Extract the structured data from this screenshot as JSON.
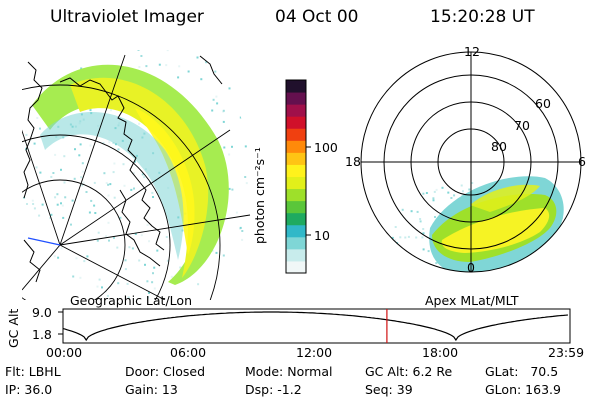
{
  "header": {
    "instrument": "Ultraviolet Imager",
    "date": "04 Oct 00",
    "time": "15:20:28 UT"
  },
  "colorbar": {
    "label": "photon cm⁻²s⁻¹",
    "ticks": [
      {
        "label": "100",
        "value": 100
      },
      {
        "label": "10",
        "value": 10
      }
    ],
    "colors": [
      "#f0f7f7",
      "#c8ecec",
      "#7fd6d6",
      "#31b8c8",
      "#1faa60",
      "#5ac63a",
      "#9ee02a",
      "#e2f01a",
      "#fff21c",
      "#ffc414",
      "#ff8a0a",
      "#f04010",
      "#d0102a",
      "#a0104a",
      "#64104e",
      "#20102c"
    ]
  },
  "left_panel": {
    "caption": "Geographic Lat/Lon"
  },
  "right_panel": {
    "caption": "Apex MLat/MLT",
    "hour_labels": [
      {
        "label": "12",
        "angle_deg": 90
      },
      {
        "label": "18",
        "angle_deg": 180
      },
      {
        "label": "6",
        "angle_deg": 0
      },
      {
        "label": "0",
        "angle_deg": 270
      }
    ],
    "lat_labels": [
      "60",
      "70",
      "80"
    ]
  },
  "alt_plot": {
    "ylabel": "GC Alt",
    "y_ticks": [
      "9.0",
      "1.8"
    ],
    "x_ticks": [
      "00:00",
      "06:00",
      "12:00",
      "18:00",
      "23:59"
    ],
    "marker_time": "15:20",
    "marker_color": "#d01010"
  },
  "info": {
    "flt": "Flt: LBHL",
    "ip": "IP: 36.0",
    "door": "Door: Closed",
    "gain": "Gain: 13",
    "mode": "Mode: Normal",
    "dsp": "Dsp:    -1.2",
    "gc_alt": "GC Alt: 6.2 Re",
    "seq": "Seq: 39",
    "glat": "GLat:   70.5",
    "glon": "GLon: 163.9"
  }
}
